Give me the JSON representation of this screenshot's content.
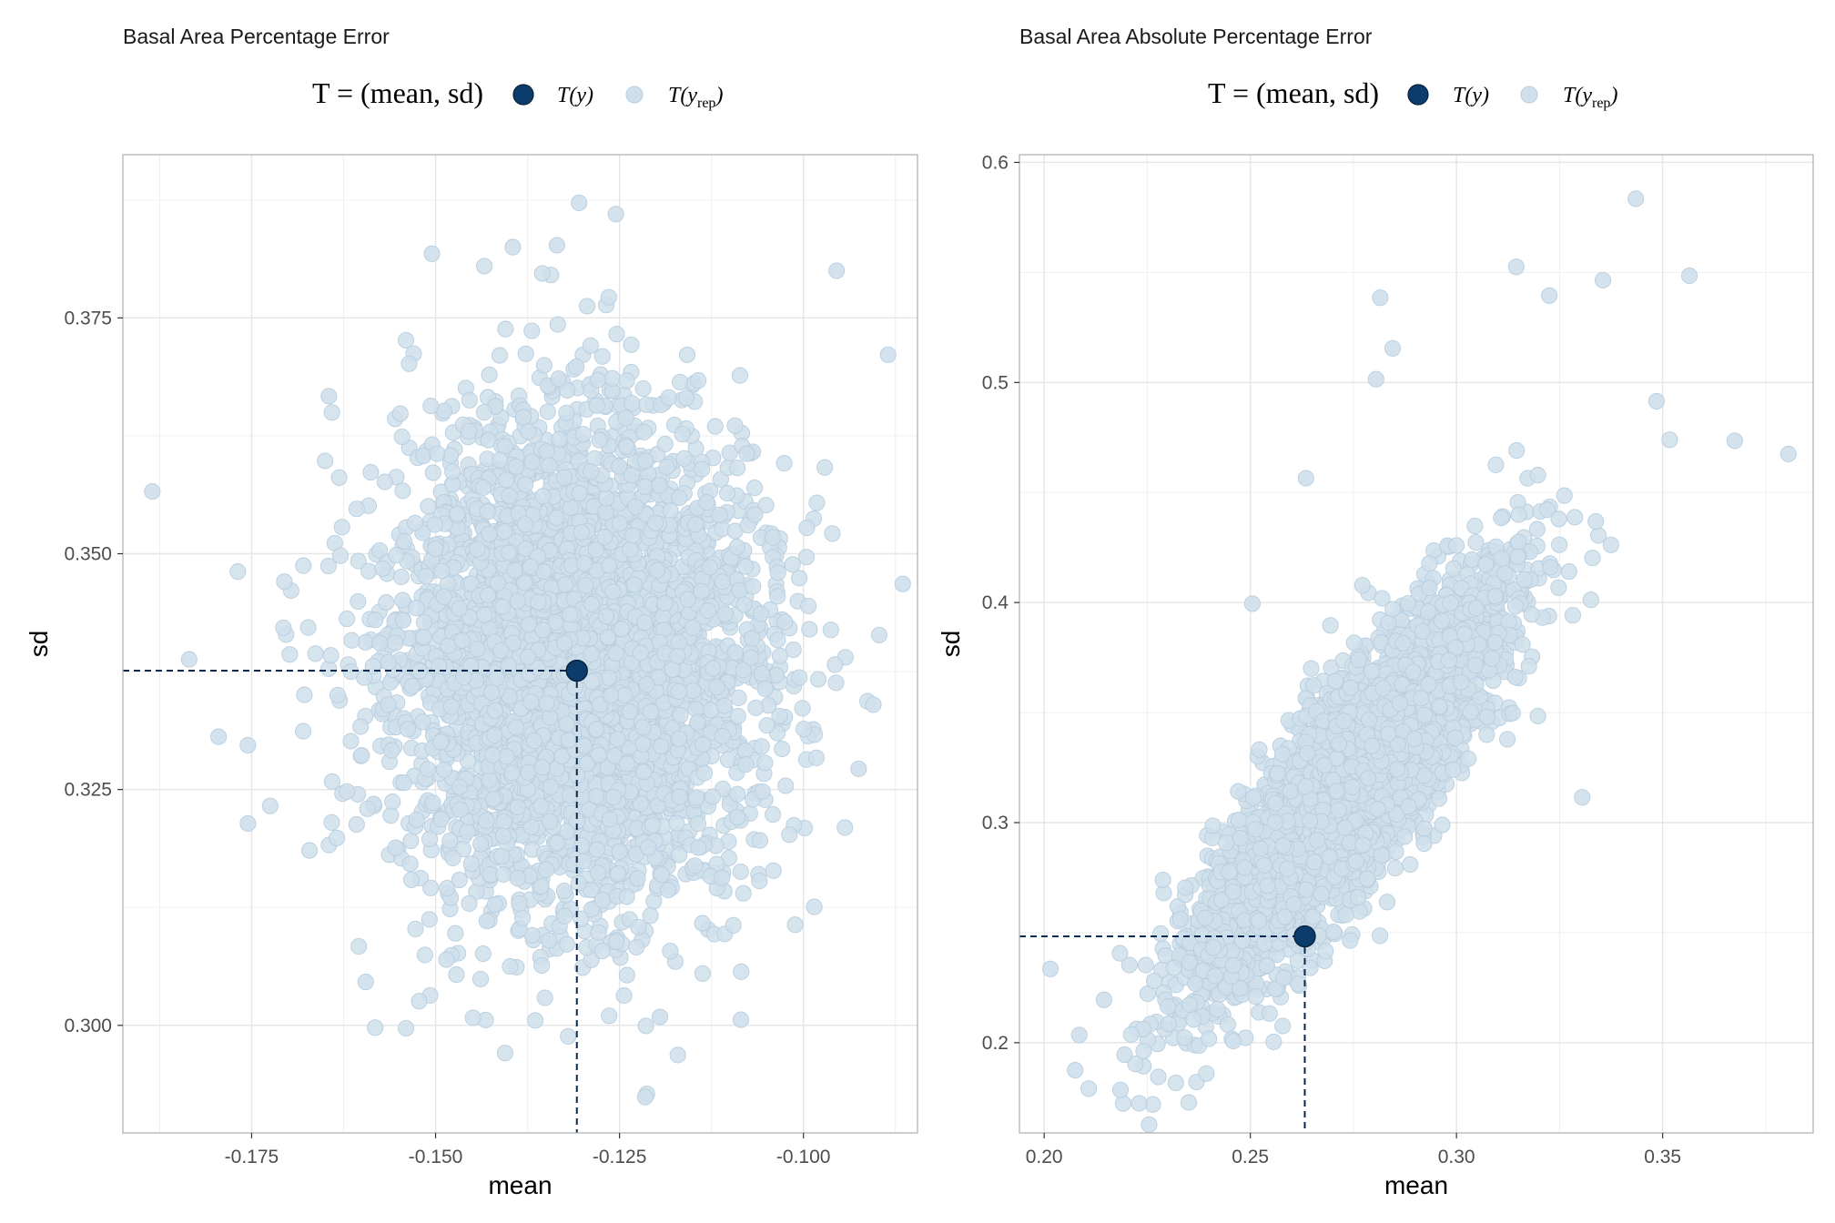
{
  "colors": {
    "observed_fill": "#0b3c6b",
    "observed_stroke": "#05213d",
    "replicated_fill": "#cfdfeb",
    "replicated_stroke": "#b9cedf",
    "guide_line": "#0b2a4f"
  },
  "legend": {
    "statistic_label": "T = (mean, sd)",
    "observed_label": "T(y)",
    "replicated_label": "T(y_rep)"
  },
  "chart_data": [
    {
      "type": "scatter",
      "title": "Basal Area Percentage Error",
      "xlabel": "mean",
      "ylabel": "sd",
      "xlim": [
        -0.1925,
        -0.0845
      ],
      "ylim": [
        0.2886,
        0.3923
      ],
      "xticks": [
        -0.175,
        -0.15,
        -0.125,
        -0.1
      ],
      "xtick_labels": [
        "-0.175",
        "-0.150",
        "-0.125",
        "-0.100"
      ],
      "yticks": [
        0.3,
        0.325,
        0.35,
        0.375
      ],
      "ytick_labels": [
        "0.300",
        "0.325",
        "0.350",
        "0.375"
      ],
      "grid": true,
      "legend_position": "top",
      "observed": {
        "x": -0.1308,
        "y": 0.3376
      },
      "replicated": {
        "n": 4000,
        "mean": [
          -0.1305,
          0.3385
        ],
        "sd": [
          0.0125,
          0.013
        ],
        "corr": 0.0,
        "outliers": [
          [
            -0.1885,
            0.3566
          ],
          [
            -0.1835,
            0.3388
          ],
          [
            -0.1795,
            0.3306
          ],
          [
            -0.1755,
            0.3297
          ],
          [
            -0.1755,
            0.3214
          ],
          [
            -0.1305,
            0.3872
          ],
          [
            -0.1255,
            0.386
          ],
          [
            -0.1215,
            0.2924
          ],
          [
            -0.1195,
            0.3009
          ],
          [
            -0.1085,
            0.3006
          ],
          [
            -0.0865,
            0.3468
          ],
          [
            -0.0885,
            0.3711
          ],
          [
            -0.0905,
            0.334
          ],
          [
            -0.0925,
            0.3272
          ],
          [
            -0.0955,
            0.38
          ],
          [
            -0.1395,
            0.3825
          ],
          [
            -0.1335,
            0.3827
          ],
          [
            -0.1505,
            0.3818
          ],
          [
            -0.1595,
            0.3046
          ],
          [
            -0.1645,
            0.3667
          ]
        ]
      }
    },
    {
      "type": "scatter",
      "title": "Basal Area Absolute Percentage Error",
      "xlabel": "mean",
      "ylabel": "sd",
      "xlim": [
        0.194,
        0.3865
      ],
      "ylim": [
        0.159,
        0.6035
      ],
      "xticks": [
        0.2,
        0.25,
        0.3,
        0.35
      ],
      "xtick_labels": [
        "0.20",
        "0.25",
        "0.30",
        "0.35"
      ],
      "yticks": [
        0.2,
        0.3,
        0.4,
        0.5,
        0.6
      ],
      "ytick_labels": [
        "0.2",
        "0.3",
        "0.4",
        "0.5",
        "0.6"
      ],
      "grid": true,
      "legend_position": "top",
      "observed": {
        "x": 0.2632,
        "y": 0.2483
      },
      "replicated": {
        "n": 4000,
        "mean": [
          0.2745,
          0.3185
        ],
        "sd": [
          0.0185,
          0.045
        ],
        "corr": 0.86,
        "outliers": [
          [
            0.2015,
            0.2335
          ],
          [
            0.2075,
            0.1875
          ],
          [
            0.2085,
            0.2035
          ],
          [
            0.2145,
            0.2195
          ],
          [
            0.2185,
            0.1785
          ],
          [
            0.2195,
            0.1945
          ],
          [
            0.3435,
            0.5835
          ],
          [
            0.3565,
            0.5485
          ],
          [
            0.3805,
            0.4675
          ],
          [
            0.3145,
            0.5525
          ],
          [
            0.2815,
            0.5385
          ],
          [
            0.3355,
            0.5465
          ],
          [
            0.3225,
            0.5395
          ],
          [
            0.2845,
            0.5155
          ],
          [
            0.2805,
            0.5015
          ],
          [
            0.3675,
            0.4735
          ],
          [
            0.3485,
            0.4915
          ],
          [
            0.2505,
            0.3995
          ],
          [
            0.2635,
            0.4565
          ],
          [
            0.3305,
            0.3115
          ]
        ]
      }
    }
  ]
}
